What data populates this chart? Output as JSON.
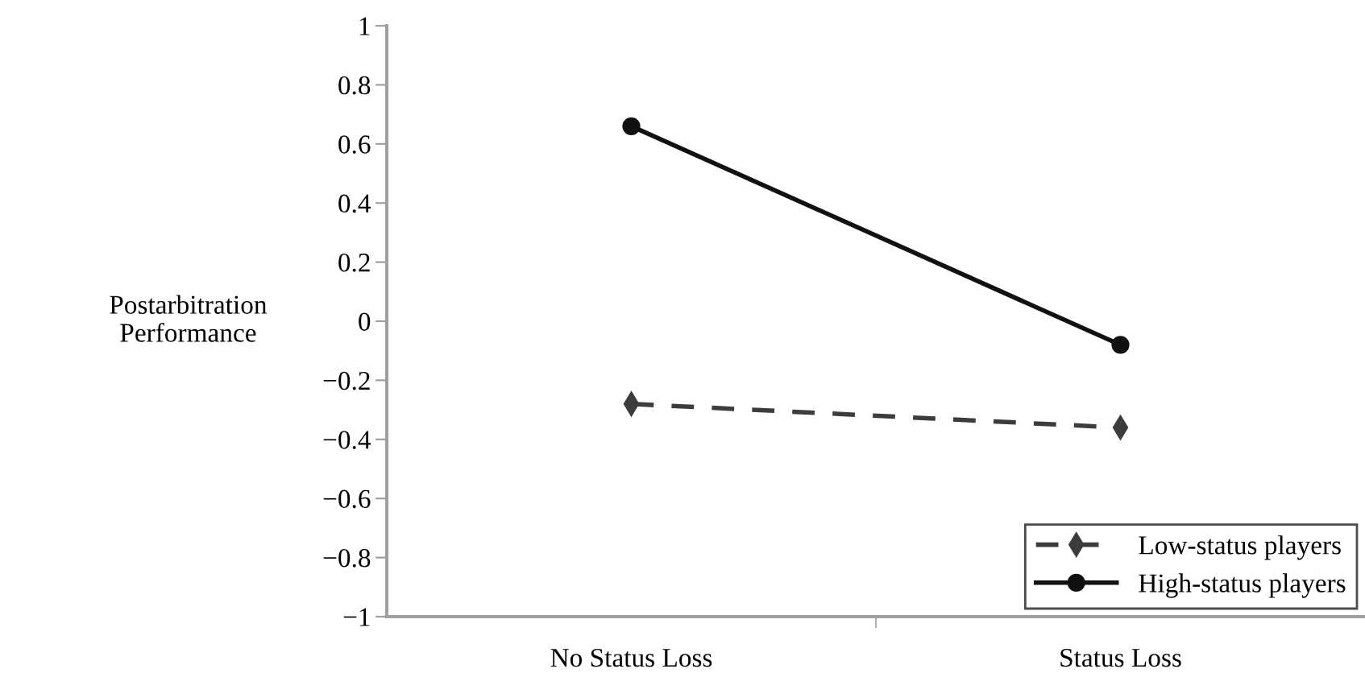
{
  "chart_data": {
    "type": "line",
    "ylabel": "Postarbitration\nPerformance",
    "categories": [
      "No Status Loss",
      "Status Loss"
    ],
    "series": [
      {
        "name": "Low-status players",
        "color": "#3c3c3c",
        "values": [
          -0.28,
          -0.36
        ],
        "marker": "diamond",
        "line_style": "dashed"
      },
      {
        "name": "High-status players",
        "color": "#111111",
        "values": [
          0.66,
          -0.08
        ],
        "marker": "circle",
        "line_style": "solid"
      }
    ],
    "ylim": [
      -1,
      1
    ],
    "yticks": [
      {
        "value": -1,
        "label": "−1"
      },
      {
        "value": -0.8,
        "label": "−0.8"
      },
      {
        "value": -0.6,
        "label": "−0.6"
      },
      {
        "value": -0.4,
        "label": "−0.4"
      },
      {
        "value": -0.2,
        "label": "−0.2"
      },
      0,
      0.2,
      0.4,
      0.6,
      0.8,
      1
    ],
    "grid": false,
    "legend": "bottom right"
  }
}
